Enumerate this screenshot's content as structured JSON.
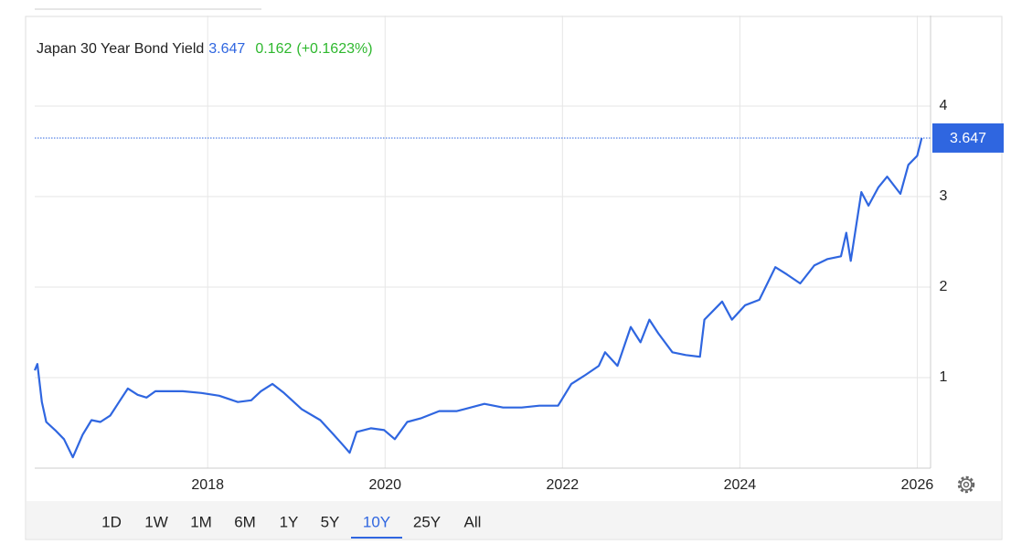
{
  "chart_data": {
    "type": "line",
    "change": 0.162,
    "change_label": "(+0.1623%)",
    "x": [
      2016.05,
      2016.08,
      2016.13,
      2016.18,
      2016.28,
      2016.38,
      2016.48,
      2016.59,
      2016.69,
      2016.79,
      2016.9,
      2017.0,
      2017.1,
      2017.21,
      2017.31,
      2017.41,
      2017.52,
      2017.72,
      2017.93,
      2018.13,
      2018.34,
      2018.49,
      2018.6,
      2018.73,
      2018.86,
      2019.06,
      2019.27,
      2019.42,
      2019.53,
      2019.6,
      2019.68,
      2019.84,
      2019.99,
      2020.11,
      2020.25,
      2020.4,
      2020.61,
      2020.81,
      2021.12,
      2021.33,
      2021.54,
      2021.74,
      2021.95,
      2022.1,
      2022.26,
      2022.41,
      2022.48,
      2022.62,
      2022.77,
      2022.88,
      2022.98,
      2023.08,
      2023.24,
      2023.39,
      2023.55,
      2023.6,
      2023.8,
      2023.91,
      2024.06,
      2024.22,
      2024.4,
      2024.53,
      2024.68,
      2024.84,
      2024.99,
      2025.14,
      2025.2,
      2025.25,
      2025.37,
      2025.45,
      2025.56,
      2025.66,
      2025.81,
      2025.9,
      2026.0,
      2026.05
    ],
    "series": [
      {
        "name": "Japan 30 Year Bond Yield",
        "color": "#2f66e0",
        "values": [
          1.08,
          1.15,
          0.73,
          0.51,
          0.42,
          0.32,
          0.12,
          0.37,
          0.53,
          0.51,
          0.58,
          0.73,
          0.88,
          0.81,
          0.78,
          0.85,
          0.85,
          0.85,
          0.83,
          0.8,
          0.73,
          0.75,
          0.85,
          0.93,
          0.83,
          0.65,
          0.53,
          0.37,
          0.25,
          0.17,
          0.4,
          0.44,
          0.42,
          0.32,
          0.51,
          0.55,
          0.63,
          0.63,
          0.71,
          0.67,
          0.67,
          0.69,
          0.69,
          0.93,
          1.03,
          1.13,
          1.28,
          1.13,
          1.56,
          1.39,
          1.64,
          1.49,
          1.28,
          1.25,
          1.23,
          1.64,
          1.84,
          1.64,
          1.8,
          1.86,
          2.22,
          2.14,
          2.04,
          2.24,
          2.31,
          2.34,
          2.6,
          2.29,
          3.05,
          2.9,
          3.1,
          3.22,
          3.03,
          3.35,
          3.45,
          3.647
        ]
      }
    ],
    "xlim": [
      2016.05,
      2026.15
    ],
    "xticks": [
      2018,
      2020,
      2022,
      2024,
      2026
    ],
    "ylim": [
      0,
      5
    ],
    "yticks": [
      1,
      2,
      3,
      4
    ],
    "grid": true
  },
  "range_selector": [
    "1D",
    "1W",
    "1M",
    "6M",
    "1Y",
    "5Y",
    "10Y",
    "25Y",
    "All"
  ]
}
